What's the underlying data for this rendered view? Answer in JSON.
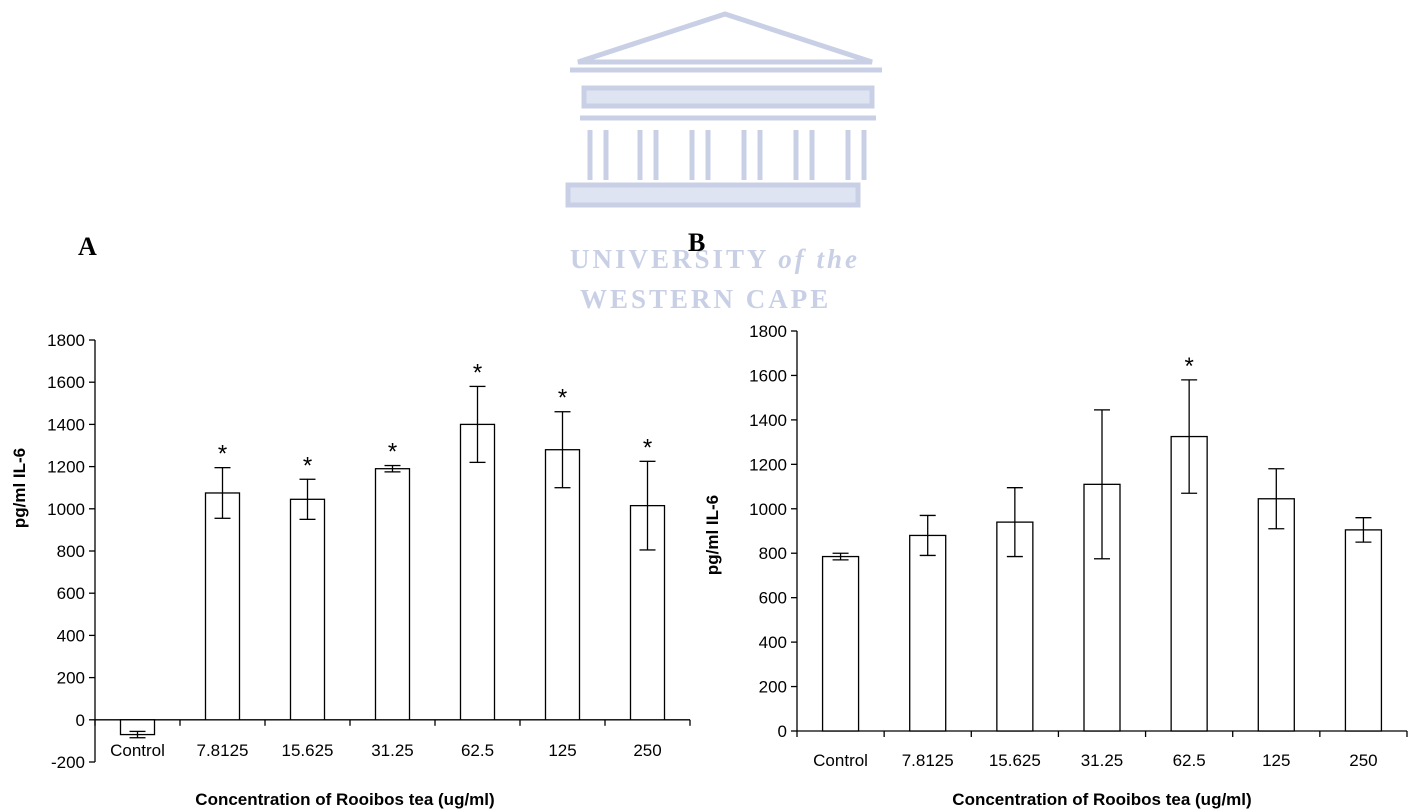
{
  "watermark": {
    "line1": "UNIVERSITY",
    "line1_italic": "of the",
    "line2": "WESTERN CAPE",
    "icon": "university-building-logo",
    "color": "#c9d0e6"
  },
  "chart_data": [
    {
      "panel": "A",
      "type": "bar",
      "categories": [
        "Control",
        "7.8125",
        "15.625",
        "31.25",
        "62.5",
        "125",
        "250"
      ],
      "values": [
        -70,
        1075,
        1045,
        1190,
        1400,
        1280,
        1015
      ],
      "error": [
        15,
        120,
        95,
        15,
        180,
        180,
        210
      ],
      "significant": [
        "",
        "*",
        "*",
        "*",
        "*",
        "*",
        "*"
      ],
      "xlabel": "Concentration of Rooibos tea (ug/ml)",
      "ylabel": "pg/ml IL-6",
      "ylim": [
        -200,
        1800
      ],
      "yticks": [
        -200,
        0,
        200,
        400,
        600,
        800,
        1000,
        1200,
        1400,
        1600,
        1800
      ],
      "grid": false,
      "bar_fill": "#ffffff",
      "bar_stroke": "#000000"
    },
    {
      "panel": "B",
      "type": "bar",
      "categories": [
        "Control",
        "7.8125",
        "15.625",
        "31.25",
        "62.5",
        "125",
        "250"
      ],
      "values": [
        785,
        880,
        940,
        1110,
        1325,
        1045,
        905
      ],
      "error": [
        15,
        90,
        155,
        335,
        255,
        135,
        55
      ],
      "significant": [
        "",
        "",
        "",
        "",
        "*",
        "",
        ""
      ],
      "xlabel": "Concentration of Rooibos tea (ug/ml)",
      "ylabel": "pg/ml IL-6",
      "ylim": [
        0,
        1800
      ],
      "yticks": [
        0,
        200,
        400,
        600,
        800,
        1000,
        1200,
        1400,
        1600,
        1800
      ],
      "grid": false,
      "bar_fill": "#ffffff",
      "bar_stroke": "#000000"
    }
  ]
}
